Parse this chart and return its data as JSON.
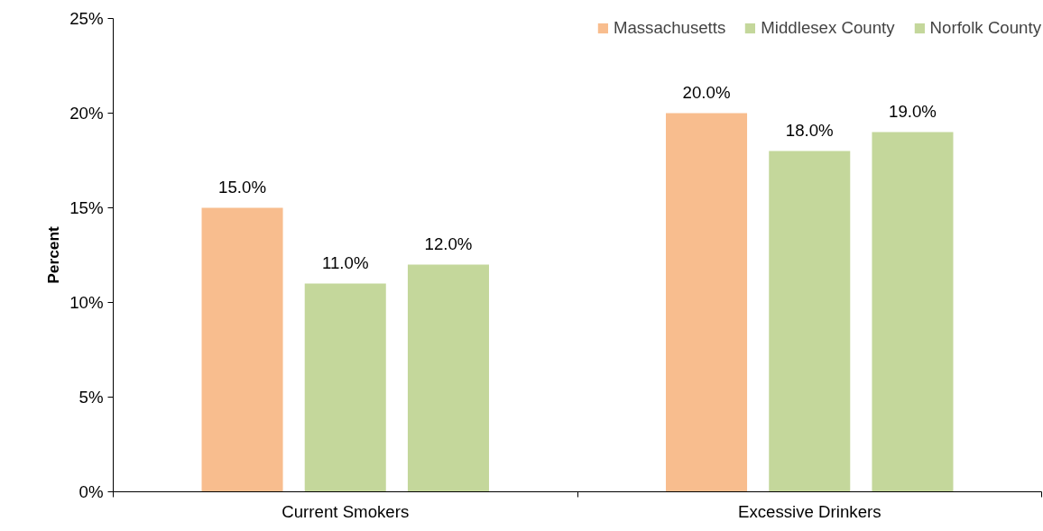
{
  "chart_data": {
    "type": "bar",
    "ylabel": "Percent",
    "categories": [
      "Current Smokers",
      "Excessive Drinkers"
    ],
    "series": [
      {
        "name": "Massachusetts",
        "color": "#f8bd8e",
        "values": [
          15.0,
          20.0
        ],
        "value_labels": [
          "15.0%",
          "20.0%"
        ]
      },
      {
        "name": "Middlesex County",
        "color": "#c4d79b",
        "values": [
          11.0,
          18.0
        ],
        "value_labels": [
          "11.0%",
          "18.0%"
        ]
      },
      {
        "name": "Norfolk County",
        "color": "#c4d79b",
        "values": [
          12.0,
          19.0
        ],
        "value_labels": [
          "12.0%",
          "19.0%"
        ]
      }
    ],
    "ylim": [
      0,
      25
    ],
    "yticks": [
      {
        "value": 0,
        "label": "0%"
      },
      {
        "value": 5,
        "label": "5%"
      },
      {
        "value": 10,
        "label": "10%"
      },
      {
        "value": 15,
        "label": "15%"
      },
      {
        "value": 20,
        "label": "20%"
      },
      {
        "value": 25,
        "label": "25%"
      }
    ],
    "grid": false,
    "legend": "top right"
  }
}
